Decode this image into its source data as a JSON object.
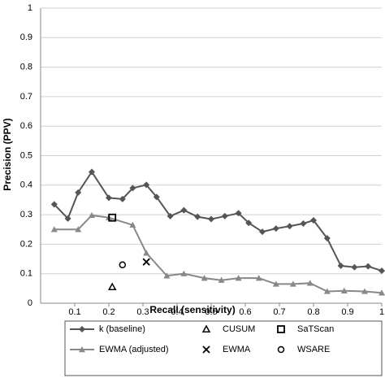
{
  "chart_data": {
    "type": "line",
    "xlabel": "Recall (sensitivity)",
    "ylabel": "Precision (PPV)",
    "xlim": [
      0,
      1
    ],
    "ylim": [
      0,
      1
    ],
    "xticks": [
      0.1,
      0.2,
      0.3,
      0.4,
      0.5,
      0.6,
      0.7,
      0.8,
      0.9,
      1
    ],
    "yticks": [
      0,
      0.1,
      0.2,
      0.3,
      0.4,
      0.5,
      0.6,
      0.7,
      0.8,
      0.9,
      1
    ],
    "grid": true,
    "series": [
      {
        "name": "k (baseline)",
        "color": "#555555",
        "marker": "diamond",
        "line": true,
        "x": [
          0.04,
          0.08,
          0.11,
          0.15,
          0.2,
          0.24,
          0.27,
          0.31,
          0.34,
          0.38,
          0.42,
          0.46,
          0.5,
          0.54,
          0.58,
          0.61,
          0.65,
          0.69,
          0.73,
          0.77,
          0.8,
          0.84,
          0.88,
          0.92,
          0.96,
          1.0
        ],
        "values": [
          0.335,
          0.287,
          0.375,
          0.445,
          0.357,
          0.353,
          0.39,
          0.401,
          0.36,
          0.295,
          0.315,
          0.293,
          0.285,
          0.295,
          0.305,
          0.272,
          0.242,
          0.253,
          0.261,
          0.27,
          0.281,
          0.22,
          0.127,
          0.122,
          0.125,
          0.11
        ]
      },
      {
        "name": "EWMA (adjusted)",
        "color": "#888888",
        "marker": "triangle",
        "line": true,
        "x": [
          0.04,
          0.11,
          0.15,
          0.2,
          0.27,
          0.31,
          0.37,
          0.42,
          0.48,
          0.53,
          0.58,
          0.64,
          0.69,
          0.74,
          0.79,
          0.84,
          0.89,
          0.95,
          1.0
        ],
        "values": [
          0.25,
          0.25,
          0.298,
          0.29,
          0.265,
          0.17,
          0.093,
          0.1,
          0.085,
          0.078,
          0.085,
          0.085,
          0.065,
          0.065,
          0.068,
          0.04,
          0.042,
          0.04,
          0.035
        ]
      },
      {
        "name": "CUSUM",
        "color": "#000000",
        "marker": "triangle-open",
        "line": false,
        "x": [
          0.21
        ],
        "values": [
          0.055
        ]
      },
      {
        "name": "EWMA",
        "color": "#000000",
        "marker": "cross",
        "line": false,
        "x": [
          0.31
        ],
        "values": [
          0.14
        ]
      },
      {
        "name": "SaTScan",
        "color": "#000000",
        "marker": "square-open",
        "line": false,
        "x": [
          0.21
        ],
        "values": [
          0.29
        ]
      },
      {
        "name": "WSARE",
        "color": "#000000",
        "marker": "circle-open",
        "line": false,
        "x": [
          0.24
        ],
        "values": [
          0.13
        ]
      }
    ]
  }
}
